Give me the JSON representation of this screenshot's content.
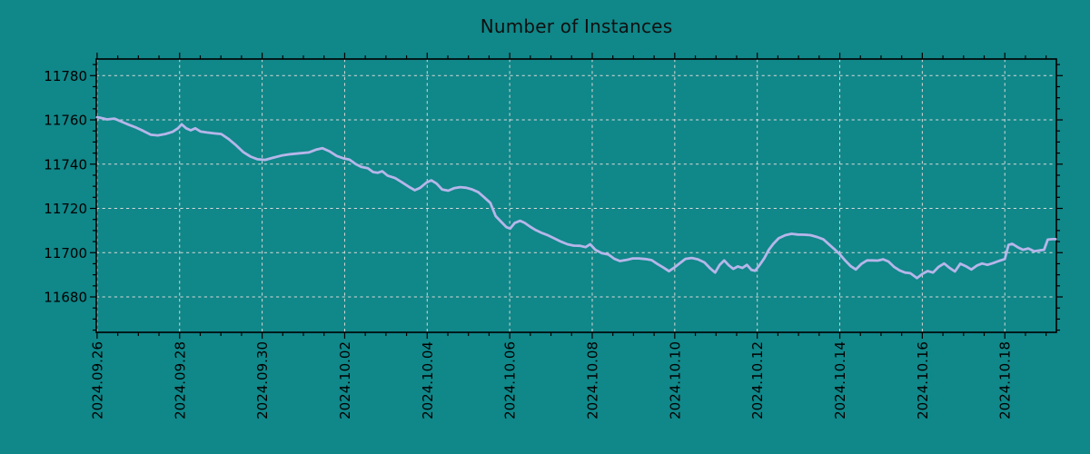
{
  "colors": {
    "background": "#108789",
    "line": "#b6b6ea",
    "grid": "#d9d9d9",
    "frame": "#000000",
    "text": "#000000",
    "title_text": "#101010"
  },
  "chart_data": {
    "type": "line",
    "title": "Number of Instances",
    "xlabel": "",
    "ylabel": "",
    "legend": "none",
    "grid": "dashed both axes",
    "x_axis": {
      "unit": "days since 2024.09.26",
      "lim": [
        -0.02,
        23.25
      ],
      "minor_tick_step": 0.5,
      "major_ticks": [
        {
          "day": 0,
          "label": "2024.09.26"
        },
        {
          "day": 2,
          "label": "2024.09.28"
        },
        {
          "day": 4,
          "label": "2024.09.30"
        },
        {
          "day": 6,
          "label": "2024.10.02"
        },
        {
          "day": 8,
          "label": "2024.10.04"
        },
        {
          "day": 10,
          "label": "2024.10.06"
        },
        {
          "day": 12,
          "label": "2024.10.08"
        },
        {
          "day": 14,
          "label": "2024.10.10"
        },
        {
          "day": 16,
          "label": "2024.10.12"
        },
        {
          "day": 18,
          "label": "2024.10.14"
        },
        {
          "day": 20,
          "label": "2024.10.16"
        },
        {
          "day": 22,
          "label": "2024.10.18"
        }
      ]
    },
    "y_axis": {
      "lim": [
        11664,
        11787.5
      ],
      "minor_tick_step": 5,
      "major_ticks": [
        11680,
        11700,
        11720,
        11740,
        11760,
        11780
      ]
    },
    "series": [
      {
        "name": "instances",
        "points": [
          [
            0.0,
            11761.2
          ],
          [
            0.07,
            11761.0
          ],
          [
            0.24,
            11760.2
          ],
          [
            0.42,
            11760.6
          ],
          [
            0.59,
            11759.2
          ],
          [
            0.77,
            11757.8
          ],
          [
            0.95,
            11756.5
          ],
          [
            1.12,
            11755.0
          ],
          [
            1.3,
            11753.3
          ],
          [
            1.47,
            11753.0
          ],
          [
            1.65,
            11753.6
          ],
          [
            1.83,
            11754.6
          ],
          [
            1.96,
            11756.2
          ],
          [
            2.05,
            11758.0
          ],
          [
            2.16,
            11756.2
          ],
          [
            2.27,
            11755.3
          ],
          [
            2.38,
            11756.2
          ],
          [
            2.51,
            11754.7
          ],
          [
            2.66,
            11754.3
          ],
          [
            2.84,
            11753.9
          ],
          [
            3.01,
            11753.6
          ],
          [
            3.19,
            11751.3
          ],
          [
            3.37,
            11748.5
          ],
          [
            3.54,
            11745.5
          ],
          [
            3.72,
            11743.4
          ],
          [
            3.89,
            11742.2
          ],
          [
            4.07,
            11741.9
          ],
          [
            4.25,
            11742.8
          ],
          [
            4.47,
            11743.9
          ],
          [
            4.69,
            11744.5
          ],
          [
            4.91,
            11744.9
          ],
          [
            5.13,
            11745.3
          ],
          [
            5.3,
            11746.5
          ],
          [
            5.46,
            11747.2
          ],
          [
            5.63,
            11745.8
          ],
          [
            5.81,
            11743.7
          ],
          [
            5.96,
            11742.7
          ],
          [
            6.12,
            11742.0
          ],
          [
            6.27,
            11740.0
          ],
          [
            6.4,
            11738.8
          ],
          [
            6.56,
            11738.2
          ],
          [
            6.69,
            11736.4
          ],
          [
            6.8,
            11736.1
          ],
          [
            6.91,
            11736.8
          ],
          [
            7.04,
            11734.8
          ],
          [
            7.22,
            11733.7
          ],
          [
            7.39,
            11731.8
          ],
          [
            7.55,
            11729.8
          ],
          [
            7.7,
            11728.2
          ],
          [
            7.83,
            11729.3
          ],
          [
            7.99,
            11731.8
          ],
          [
            8.1,
            11732.7
          ],
          [
            8.23,
            11731.2
          ],
          [
            8.36,
            11728.6
          ],
          [
            8.51,
            11728.0
          ],
          [
            8.65,
            11729.1
          ],
          [
            8.8,
            11729.6
          ],
          [
            8.95,
            11729.3
          ],
          [
            9.09,
            11728.6
          ],
          [
            9.24,
            11727.3
          ],
          [
            9.37,
            11725.2
          ],
          [
            9.53,
            11722.5
          ],
          [
            9.66,
            11716.5
          ],
          [
            9.79,
            11714.0
          ],
          [
            9.92,
            11711.5
          ],
          [
            10.01,
            11710.9
          ],
          [
            10.12,
            11713.4
          ],
          [
            10.25,
            11714.4
          ],
          [
            10.36,
            11713.5
          ],
          [
            10.49,
            11711.8
          ],
          [
            10.63,
            11710.2
          ],
          [
            10.78,
            11708.9
          ],
          [
            10.93,
            11707.8
          ],
          [
            11.09,
            11706.4
          ],
          [
            11.24,
            11705.0
          ],
          [
            11.4,
            11703.8
          ],
          [
            11.55,
            11703.2
          ],
          [
            11.7,
            11703.1
          ],
          [
            11.84,
            11702.5
          ],
          [
            11.95,
            11703.8
          ],
          [
            12.08,
            11701.2
          ],
          [
            12.23,
            11699.8
          ],
          [
            12.39,
            11699.2
          ],
          [
            12.54,
            11697.2
          ],
          [
            12.67,
            11696.2
          ],
          [
            12.83,
            11696.7
          ],
          [
            12.98,
            11697.4
          ],
          [
            13.13,
            11697.4
          ],
          [
            13.29,
            11697.1
          ],
          [
            13.44,
            11696.6
          ],
          [
            13.57,
            11695.0
          ],
          [
            13.73,
            11693.2
          ],
          [
            13.86,
            11691.6
          ],
          [
            13.99,
            11693.3
          ],
          [
            14.12,
            11695.2
          ],
          [
            14.26,
            11697.2
          ],
          [
            14.41,
            11697.6
          ],
          [
            14.56,
            11697.0
          ],
          [
            14.72,
            11695.6
          ],
          [
            14.87,
            11692.7
          ],
          [
            14.98,
            11691.0
          ],
          [
            15.09,
            11694.5
          ],
          [
            15.2,
            11696.5
          ],
          [
            15.31,
            11694.3
          ],
          [
            15.42,
            11692.7
          ],
          [
            15.53,
            11693.8
          ],
          [
            15.64,
            11693.1
          ],
          [
            15.75,
            11694.5
          ],
          [
            15.86,
            11692.2
          ],
          [
            15.95,
            11691.8
          ],
          [
            16.06,
            11694.5
          ],
          [
            16.17,
            11697.5
          ],
          [
            16.28,
            11701.3
          ],
          [
            16.39,
            11704.0
          ],
          [
            16.52,
            11706.5
          ],
          [
            16.68,
            11707.9
          ],
          [
            16.83,
            11708.5
          ],
          [
            16.98,
            11708.2
          ],
          [
            17.14,
            11708.1
          ],
          [
            17.29,
            11707.9
          ],
          [
            17.45,
            11707.1
          ],
          [
            17.6,
            11706.0
          ],
          [
            17.73,
            11703.9
          ],
          [
            17.87,
            11701.6
          ],
          [
            18.0,
            11699.3
          ],
          [
            18.13,
            11696.5
          ],
          [
            18.26,
            11694.0
          ],
          [
            18.39,
            11692.4
          ],
          [
            18.53,
            11695.0
          ],
          [
            18.66,
            11696.5
          ],
          [
            18.79,
            11696.5
          ],
          [
            18.92,
            11696.4
          ],
          [
            19.05,
            11697.0
          ],
          [
            19.18,
            11696.0
          ],
          [
            19.32,
            11693.5
          ],
          [
            19.45,
            11692.0
          ],
          [
            19.58,
            11691.0
          ],
          [
            19.71,
            11690.7
          ],
          [
            19.87,
            11688.5
          ],
          [
            20.0,
            11690.4
          ],
          [
            20.13,
            11691.7
          ],
          [
            20.26,
            11691.0
          ],
          [
            20.39,
            11693.5
          ],
          [
            20.53,
            11695.1
          ],
          [
            20.66,
            11693.1
          ],
          [
            20.79,
            11691.5
          ],
          [
            20.92,
            11695.0
          ],
          [
            21.05,
            11693.9
          ],
          [
            21.19,
            11692.4
          ],
          [
            21.32,
            11694.1
          ],
          [
            21.45,
            11695.1
          ],
          [
            21.58,
            11694.5
          ],
          [
            21.72,
            11695.3
          ],
          [
            21.85,
            11696.2
          ],
          [
            22.0,
            11697.1
          ],
          [
            22.09,
            11703.5
          ],
          [
            22.18,
            11704.0
          ],
          [
            22.31,
            11702.5
          ],
          [
            22.44,
            11701.3
          ],
          [
            22.57,
            11701.9
          ],
          [
            22.71,
            11700.6
          ],
          [
            22.84,
            11701.0
          ],
          [
            22.95,
            11701.3
          ],
          [
            23.04,
            11705.9
          ],
          [
            23.15,
            11706.1
          ],
          [
            23.23,
            11706.1
          ]
        ]
      }
    ]
  }
}
